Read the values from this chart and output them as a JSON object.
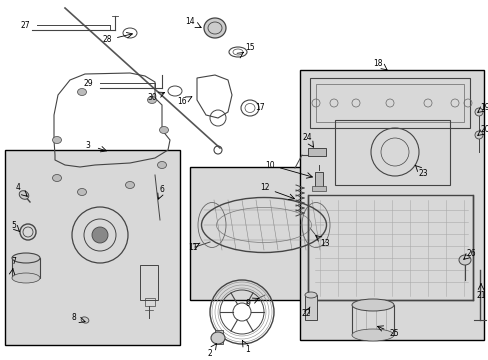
{
  "bg_color": "#ffffff",
  "line_color": "#000000",
  "text_color": "#000000",
  "box_fill": "#d8d8d8",
  "fig_width": 4.89,
  "fig_height": 3.6,
  "dpi": 100
}
